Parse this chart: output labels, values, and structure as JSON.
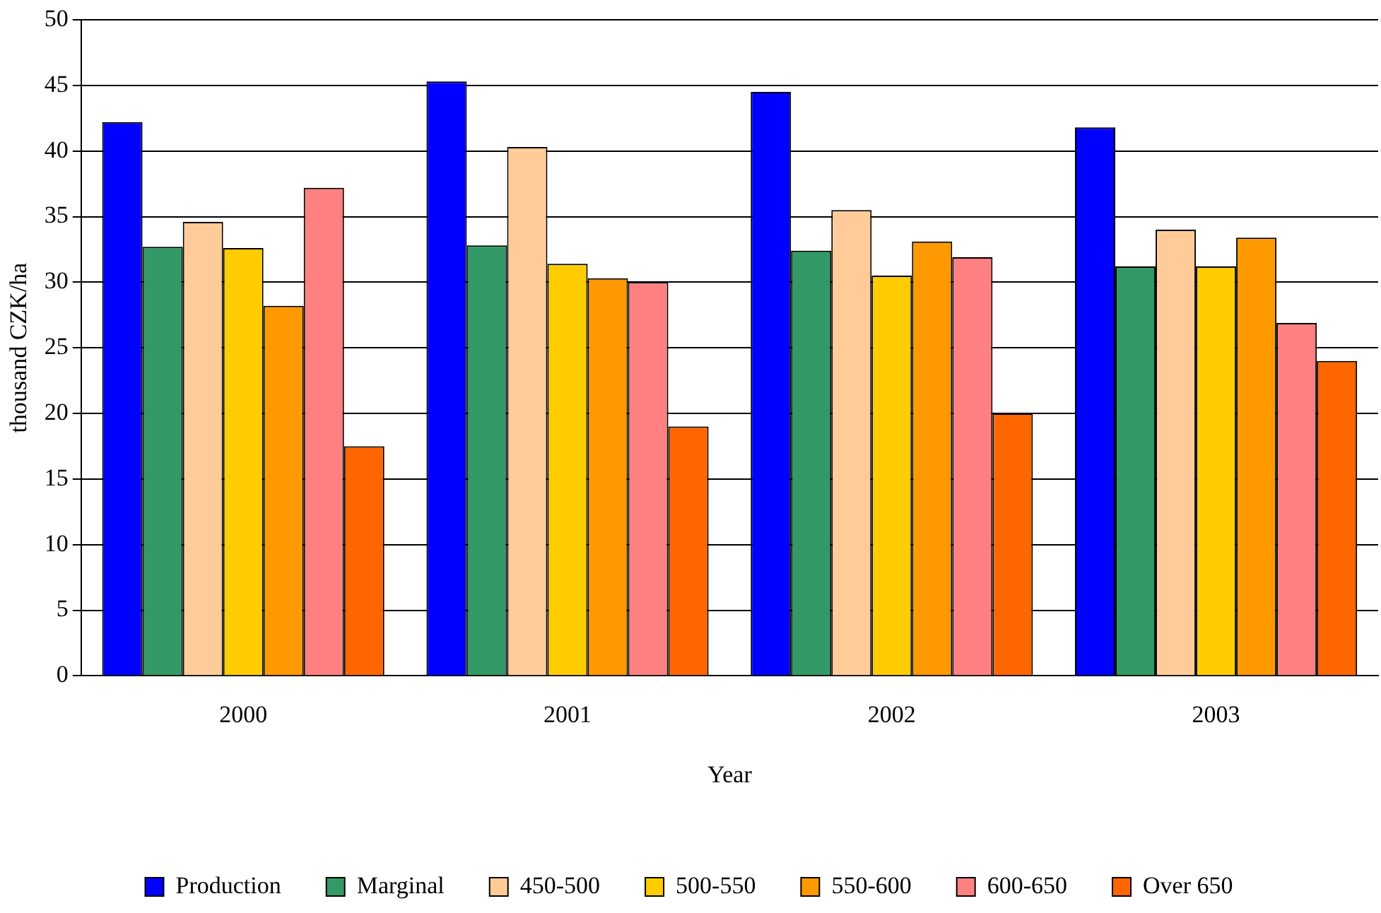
{
  "chart_data": {
    "type": "bar",
    "xlabel": "Year",
    "ylabel": "thousand CZK/ha",
    "categories": [
      "2000",
      "2001",
      "2002",
      "2003"
    ],
    "series": [
      {
        "name": "Production",
        "color": "#0000ff",
        "values": [
          42.2,
          45.3,
          44.5,
          41.8
        ]
      },
      {
        "name": "Marginal",
        "color": "#339966",
        "values": [
          32.7,
          32.8,
          32.4,
          31.2
        ]
      },
      {
        "name": "450-500",
        "color": "#ffcc99",
        "values": [
          34.6,
          40.3,
          35.5,
          34.0
        ]
      },
      {
        "name": "500-550",
        "color": "#ffcc00",
        "values": [
          32.6,
          31.4,
          30.5,
          31.2
        ]
      },
      {
        "name": "550-600",
        "color": "#ff9900",
        "values": [
          28.2,
          30.3,
          33.1,
          33.4
        ]
      },
      {
        "name": "600-650",
        "color": "#ff8080",
        "values": [
          37.2,
          30.0,
          31.9,
          26.9
        ]
      },
      {
        "name": "Over 650",
        "color": "#ff6600",
        "values": [
          17.5,
          19.0,
          20.0,
          24.0
        ]
      }
    ],
    "ylim": [
      0,
      50
    ],
    "yticks": [
      0,
      5,
      10,
      15,
      20,
      25,
      30,
      35,
      40,
      45,
      50
    ],
    "grid": "y",
    "legend": "bottom"
  }
}
